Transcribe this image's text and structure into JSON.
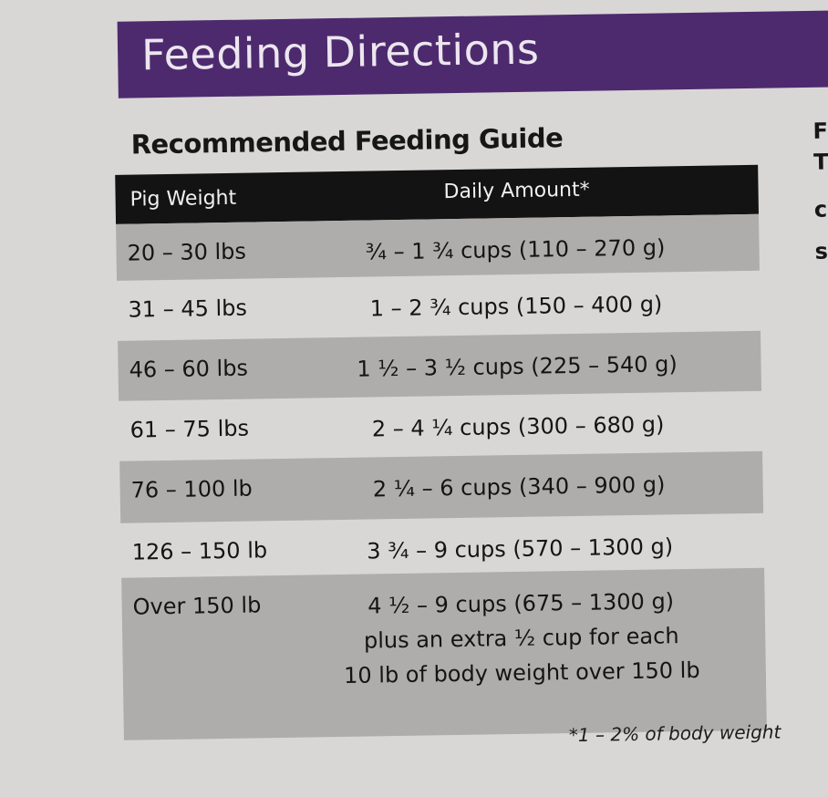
{
  "banner": {
    "title": "Feeding Directions"
  },
  "guide": {
    "title": "Recommended Feeding Guide",
    "headers": [
      "Pig Weight",
      "Daily Amount*"
    ],
    "rows": [
      {
        "weight": "20 – 30 lbs",
        "amount": "¾ – 1 ¾ cups (110 – 270 g)"
      },
      {
        "weight": "31 – 45 lbs",
        "amount": "1 – 2 ¾ cups (150 – 400 g)"
      },
      {
        "weight": "46 – 60 lbs",
        "amount": "1 ½ – 3 ½ cups (225 – 540 g)"
      },
      {
        "weight": "61 – 75 lbs",
        "amount": "2 – 4 ¼ cups (300 – 680 g)"
      },
      {
        "weight": "76 – 100 lb",
        "amount": "2 ¼ – 6 cups (340 – 900 g)"
      },
      {
        "weight": "126 – 150 lb",
        "amount": "3 ¾ – 9 cups (570 – 1300 g)"
      },
      {
        "weight": "Over 150 lb",
        "amount": "4 ½ – 9 cups (675 – 1300 g)",
        "amount_line2": "plus an extra ½ cup for each",
        "amount_line3": "10 lb of body weight over 150 lb"
      }
    ],
    "footnote": "*1 – 2% of body weight"
  },
  "side_fragments": [
    "F",
    "T",
    "c",
    "s"
  ]
}
